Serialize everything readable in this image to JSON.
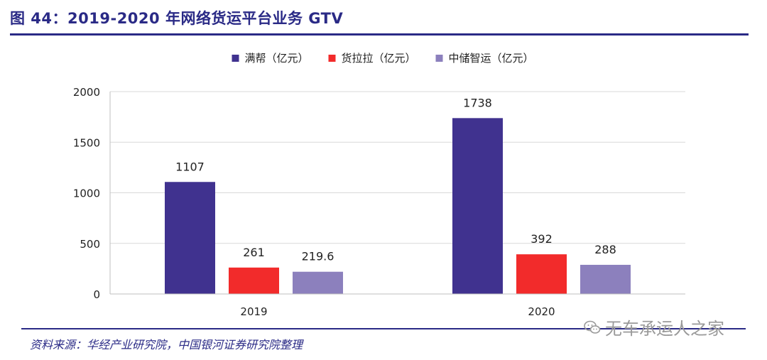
{
  "header": {
    "title": "图 44：2019-2020 年网络货运平台业务 GTV"
  },
  "footer": {
    "source": "资料来源：华经产业研究院，中国银河证券研究院整理",
    "watermark": "无车承运人之家"
  },
  "chart_data": {
    "type": "bar",
    "title": "图 44：2019-2020 年网络货运平台业务 GTV",
    "categories": [
      "2019",
      "2020"
    ],
    "series": [
      {
        "name": "满帮（亿元）",
        "values": [
          1107,
          1738
        ],
        "labels": [
          "1107",
          "1738"
        ],
        "color": "#40328f"
      },
      {
        "name": "货拉拉（亿元）",
        "values": [
          261,
          392
        ],
        "labels": [
          "261",
          "392"
        ],
        "color": "#f22b2b"
      },
      {
        "name": "中储智运（亿元）",
        "values": [
          219.6,
          288
        ],
        "labels": [
          "219.6",
          "288"
        ],
        "color": "#8c80bd"
      }
    ],
    "ylim": [
      0,
      2000
    ],
    "yticks": [
      0,
      500,
      1000,
      1500,
      2000
    ],
    "grid": true,
    "legend": "top-center",
    "xlabel": "",
    "ylabel": ""
  }
}
